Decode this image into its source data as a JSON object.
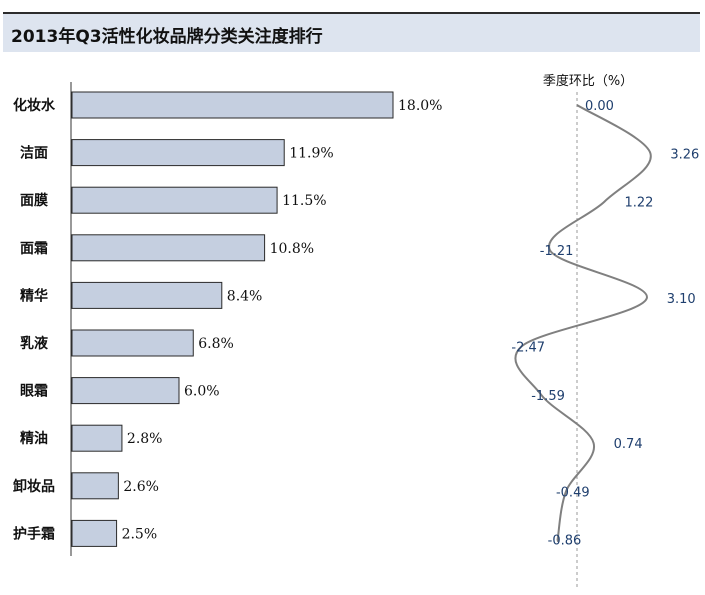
{
  "title": "2013年Q3活性化妆品牌分类关注度排行",
  "chart_data": [
    {
      "type": "bar",
      "orientation": "horizontal",
      "categories": [
        "化妆水",
        "洁面",
        "面膜",
        "面霜",
        "精华",
        "乳液",
        "眼霜",
        "精油",
        "卸妆品",
        "护手霜"
      ],
      "values": [
        18.0,
        11.9,
        11.5,
        10.8,
        8.4,
        6.8,
        6.0,
        2.8,
        2.6,
        2.5
      ],
      "value_labels": [
        "18.0%",
        "11.9%",
        "11.5%",
        "10.8%",
        "8.4%",
        "6.8%",
        "6.0%",
        "2.8%",
        "2.6%",
        "2.5%"
      ],
      "xlim": [
        0,
        18.0
      ],
      "colors": {
        "bar_fill": "#c5cfe0",
        "bar_stroke": "#2a2a2a"
      }
    },
    {
      "type": "line",
      "title": "季度环比（%）",
      "categories": [
        "化妆水",
        "洁面",
        "面膜",
        "面霜",
        "精华",
        "乳液",
        "眼霜",
        "精油",
        "卸妆品",
        "护手霜"
      ],
      "values": [
        0.0,
        3.26,
        1.22,
        -1.21,
        3.1,
        -2.47,
        -1.59,
        0.74,
        -0.49,
        -0.86
      ],
      "value_labels": [
        "0.00",
        "3.26",
        "1.22",
        "-1.21",
        "3.10",
        "-2.47",
        "-1.59",
        "0.74",
        "-0.49",
        "-0.86"
      ],
      "xlim": [
        -2.47,
        3.26
      ],
      "zero_reference_line": "dashed",
      "colors": {
        "line": "#808080",
        "labels": "#1f3f6e",
        "reference": "#999999"
      }
    }
  ]
}
